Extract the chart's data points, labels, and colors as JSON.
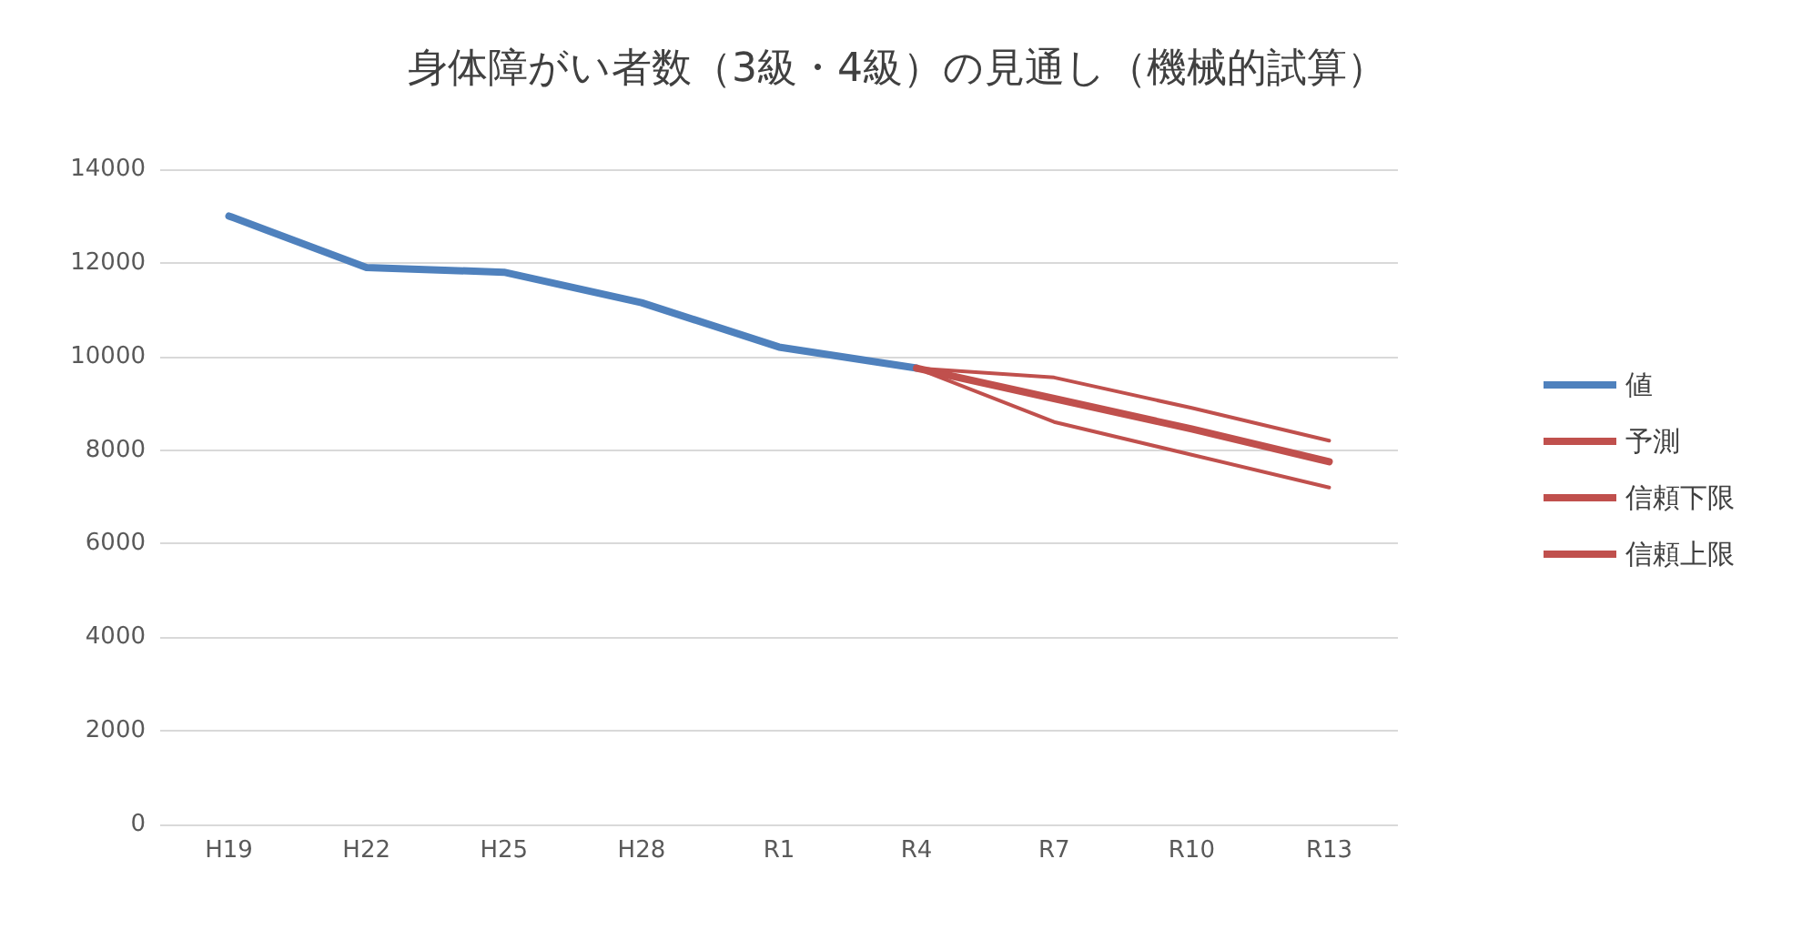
{
  "chart_data": {
    "type": "line",
    "title": "身体障がい者数（3級・4級）の見通し（機械的試算）",
    "categories": [
      "H19",
      "H22",
      "H25",
      "H28",
      "R1",
      "R4",
      "R7",
      "R10",
      "R13"
    ],
    "series": [
      {
        "name": "値",
        "color": "#4f81bd",
        "values": [
          13000,
          11900,
          11800,
          11150,
          10200,
          9750,
          null,
          null,
          null
        ]
      },
      {
        "name": "予測",
        "color": "#c0504d",
        "values": [
          null,
          null,
          null,
          null,
          null,
          9750,
          9100,
          8450,
          7750
        ]
      },
      {
        "name": "信頼下限",
        "color": "#c0504d",
        "values": [
          null,
          null,
          null,
          null,
          null,
          9750,
          8600,
          7900,
          7200
        ]
      },
      {
        "name": "信頼上限",
        "color": "#c0504d",
        "values": [
          null,
          null,
          null,
          null,
          null,
          9750,
          9550,
          8900,
          8200
        ]
      }
    ],
    "ylim": [
      0,
      14000
    ],
    "yticks": [
      0,
      2000,
      4000,
      6000,
      8000,
      10000,
      12000,
      14000
    ],
    "grid": "y",
    "legend": "right",
    "marker": "none",
    "line_style": "solid"
  }
}
